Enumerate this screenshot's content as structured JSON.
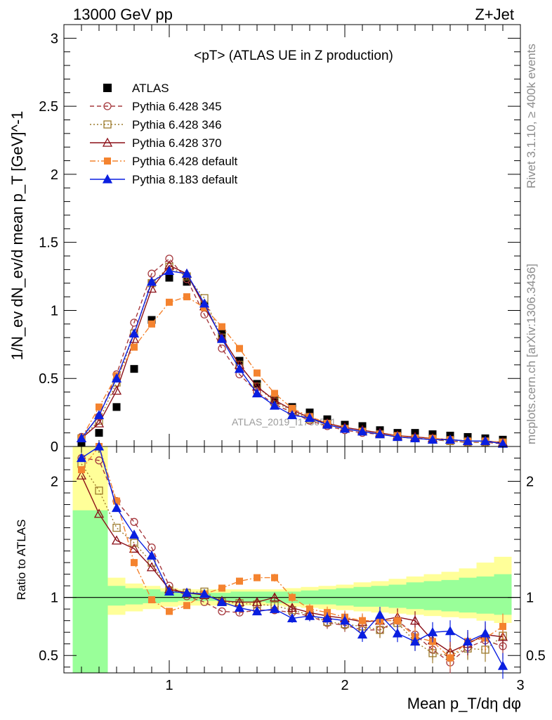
{
  "header": {
    "left": "13000 GeV pp",
    "right": "Z+Jet"
  },
  "side_text": {
    "rivet": "Rivet 3.1.10, ≥ 400k events",
    "mcplots": "mcplots.cern.ch [arXiv:1306.3436]"
  },
  "colors": {
    "atlas": "#000000",
    "p345": "#a63a3f",
    "p346": "#9c7a2b",
    "p370": "#8b0f17",
    "p6def": "#f4832f",
    "p8def": "#0a1fe0",
    "band_yellow": "#ffff99",
    "band_green": "#99ff99"
  },
  "chart_data": [
    {
      "type": "line",
      "title": "<pT> (ATLAS UE in Z production)",
      "ylabel": "1/N_ev dN_ev/d mean p_T [GeV]^-1",
      "xlim": [
        0.4,
        3.0
      ],
      "ylim": [
        0,
        3.1
      ],
      "yticks": [
        "0",
        "0.5",
        "1",
        "1.5",
        "2",
        "2.5",
        "3"
      ],
      "x": [
        0.5,
        0.6,
        0.7,
        0.8,
        0.9,
        1.0,
        1.1,
        1.2,
        1.3,
        1.4,
        1.5,
        1.6,
        1.7,
        1.8,
        1.9,
        2.0,
        2.1,
        2.2,
        2.3,
        2.4,
        2.5,
        2.6,
        2.7,
        2.8,
        2.9
      ],
      "watermark": "ATLAS_2019_I1736531",
      "series": [
        {
          "name": "ATLAS",
          "key": "atlas",
          "values": [
            0.03,
            0.1,
            0.29,
            0.57,
            0.93,
            1.24,
            1.21,
            1.03,
            0.83,
            0.63,
            0.46,
            0.35,
            0.29,
            0.25,
            0.2,
            0.16,
            0.15,
            0.12,
            0.1,
            0.1,
            0.09,
            0.08,
            0.07,
            0.06,
            0.05
          ]
        },
        {
          "name": "Pythia 6.428 345",
          "key": "p345",
          "values": [
            0.07,
            0.22,
            0.53,
            0.91,
            1.27,
            1.38,
            1.23,
            0.97,
            0.72,
            0.53,
            0.4,
            0.31,
            0.25,
            0.19,
            0.15,
            0.12,
            0.1,
            0.09,
            0.07,
            0.06,
            0.05,
            0.04,
            0.03,
            0.03,
            0.02
          ]
        },
        {
          "name": "Pythia 6.428 346",
          "key": "p346",
          "values": [
            0.06,
            0.19,
            0.47,
            0.83,
            1.2,
            1.32,
            1.25,
            1.09,
            0.8,
            0.6,
            0.44,
            0.33,
            0.26,
            0.2,
            0.16,
            0.13,
            0.11,
            0.09,
            0.07,
            0.06,
            0.05,
            0.04,
            0.03,
            0.03,
            0.03
          ]
        },
        {
          "name": "Pythia 6.428 370",
          "key": "p370",
          "values": [
            0.06,
            0.17,
            0.41,
            0.79,
            1.16,
            1.33,
            1.27,
            1.03,
            0.8,
            0.6,
            0.44,
            0.34,
            0.27,
            0.21,
            0.17,
            0.14,
            0.12,
            0.1,
            0.08,
            0.07,
            0.06,
            0.05,
            0.04,
            0.04,
            0.03
          ]
        },
        {
          "name": "Pythia 6.428 default",
          "key": "p6def",
          "values": [
            0.06,
            0.29,
            0.52,
            0.73,
            0.9,
            1.06,
            1.1,
            1.02,
            0.88,
            0.72,
            0.54,
            0.39,
            0.28,
            0.22,
            0.17,
            0.13,
            0.11,
            0.09,
            0.08,
            0.06,
            0.06,
            0.05,
            0.04,
            0.04,
            0.03
          ]
        },
        {
          "name": "Pythia 8.183 default",
          "key": "p8def",
          "values": [
            0.06,
            0.23,
            0.5,
            0.83,
            1.21,
            1.29,
            1.27,
            1.05,
            0.79,
            0.57,
            0.39,
            0.3,
            0.23,
            0.21,
            0.16,
            0.13,
            0.11,
            0.09,
            0.07,
            0.06,
            0.05,
            0.05,
            0.04,
            0.04,
            0.02
          ]
        }
      ]
    },
    {
      "type": "line",
      "ylabel": "Ratio to ATLAS",
      "xlabel": "Mean p_T/dη dφ",
      "xlim": [
        0.4,
        3.0
      ],
      "ylim": [
        0.35,
        2.3
      ],
      "yticks": [
        "0.5",
        "1",
        "2"
      ],
      "xticks": [
        "1",
        "2",
        "3"
      ],
      "x": [
        0.5,
        0.6,
        0.7,
        0.8,
        0.9,
        1.0,
        1.1,
        1.2,
        1.3,
        1.4,
        1.5,
        1.6,
        1.7,
        1.8,
        1.9,
        2.0,
        2.1,
        2.2,
        2.3,
        2.4,
        2.5,
        2.6,
        2.7,
        2.8,
        2.9
      ],
      "band_outer": [
        [
          0.55,
          2.3
        ],
        [
          0.7,
          2.3
        ],
        [
          0.85,
          1.17
        ],
        [
          0.88,
          1.12
        ],
        [
          0.9,
          1.1
        ],
        [
          0.92,
          1.08
        ],
        [
          0.93,
          1.07
        ],
        [
          0.93,
          1.07
        ],
        [
          0.93,
          1.07
        ],
        [
          0.93,
          1.07
        ],
        [
          0.93,
          1.07
        ],
        [
          0.93,
          1.07
        ],
        [
          0.92,
          1.08
        ],
        [
          0.91,
          1.09
        ],
        [
          0.9,
          1.1
        ],
        [
          0.89,
          1.11
        ],
        [
          0.88,
          1.13
        ],
        [
          0.87,
          1.14
        ],
        [
          0.86,
          1.16
        ],
        [
          0.85,
          1.18
        ],
        [
          0.84,
          1.2
        ],
        [
          0.83,
          1.22
        ],
        [
          0.82,
          1.25
        ],
        [
          0.8,
          1.3
        ],
        [
          0.78,
          1.35
        ]
      ],
      "band_inner": [
        [
          0.35,
          1.75
        ],
        [
          0.35,
          1.75
        ],
        [
          0.93,
          1.1
        ],
        [
          0.94,
          1.08
        ],
        [
          0.95,
          1.07
        ],
        [
          0.96,
          1.05
        ],
        [
          0.97,
          1.04
        ],
        [
          0.97,
          1.04
        ],
        [
          0.97,
          1.04
        ],
        [
          0.96,
          1.05
        ],
        [
          0.96,
          1.05
        ],
        [
          0.95,
          1.05
        ],
        [
          0.95,
          1.05
        ],
        [
          0.94,
          1.06
        ],
        [
          0.94,
          1.07
        ],
        [
          0.93,
          1.08
        ],
        [
          0.92,
          1.09
        ],
        [
          0.92,
          1.1
        ],
        [
          0.91,
          1.11
        ],
        [
          0.9,
          1.13
        ],
        [
          0.89,
          1.14
        ],
        [
          0.88,
          1.15
        ],
        [
          0.87,
          1.17
        ],
        [
          0.86,
          1.18
        ],
        [
          0.85,
          1.2
        ]
      ],
      "series": [
        {
          "name": "Pythia 6.428 345",
          "key": "p345",
          "values": [
            2.2,
            2.18,
            1.83,
            1.65,
            1.43,
            1.1,
            1.01,
            0.96,
            0.88,
            0.87,
            0.89,
            0.89,
            0.87,
            0.84,
            0.78,
            0.76,
            0.72,
            0.72,
            0.8,
            0.68,
            0.55,
            0.44,
            0.57,
            0.63,
            0.58
          ]
        },
        {
          "name": "Pythia 6.428 346",
          "key": "p346",
          "values": [
            2.15,
            1.92,
            1.6,
            1.47,
            1.3,
            1.06,
            1.04,
            1.05,
            0.96,
            0.95,
            0.94,
            0.93,
            0.89,
            0.85,
            0.79,
            0.77,
            0.75,
            0.72,
            0.78,
            0.62,
            0.52,
            0.5,
            0.56,
            0.55,
            0.67
          ]
        },
        {
          "name": "Pythia 6.428 370",
          "key": "p370",
          "values": [
            2.05,
            1.72,
            1.49,
            1.42,
            1.26,
            1.07,
            1.04,
            1.02,
            0.97,
            0.96,
            0.96,
            1.0,
            0.91,
            0.87,
            0.84,
            0.82,
            0.79,
            0.8,
            0.83,
            0.8,
            0.63,
            0.53,
            0.6,
            0.68,
            0.66
          ]
        },
        {
          "name": "Pythia 6.428 default",
          "key": "p6def",
          "values": [
            2.1,
            2.3,
            1.83,
            1.3,
            0.98,
            0.88,
            0.93,
            1.03,
            1.08,
            1.14,
            1.17,
            1.17,
            1.0,
            0.9,
            0.87,
            0.83,
            0.8,
            0.8,
            0.8,
            0.66,
            0.62,
            0.48,
            0.62,
            0.65,
            0.75
          ]
        },
        {
          "name": "Pythia 8.183 default",
          "key": "p8def",
          "values": [
            2.2,
            2.3,
            1.77,
            1.54,
            1.36,
            1.05,
            1.04,
            1.03,
            0.96,
            0.91,
            0.88,
            0.9,
            0.82,
            0.84,
            0.82,
            0.8,
            0.68,
            0.85,
            0.69,
            0.62,
            0.7,
            0.71,
            0.62,
            0.69,
            0.41
          ]
        }
      ]
    }
  ]
}
